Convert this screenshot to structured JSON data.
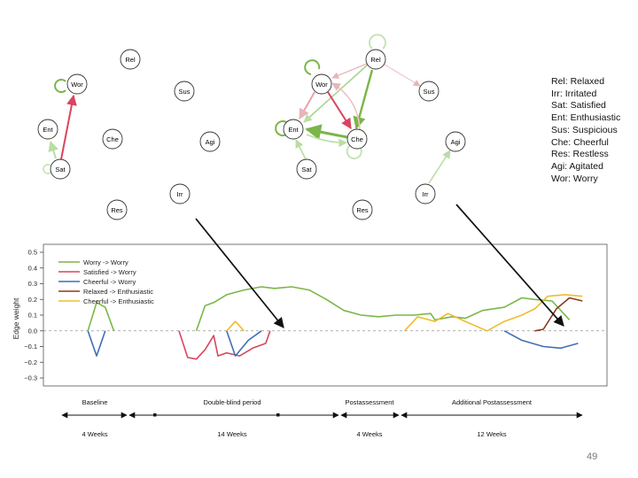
{
  "networks": {
    "node_labels": [
      "Rel",
      "Wor",
      "Sus",
      "Ent",
      "Che",
      "Agi",
      "Sat",
      "Irr",
      "Res"
    ]
  },
  "abbreviation_key": [
    "Rel: Relaxed",
    "Irr: Irritated",
    "Sat: Satisfied",
    "Ent: Enthusiastic",
    "Sus: Suspicious",
    "Che: Cheerful",
    "Res: Restless",
    "Agi: Agitated",
    "Wor: Worry"
  ],
  "colors": {
    "green": "#7ab648",
    "red": "#d9455f",
    "blue": "#3f6fb5",
    "brown": "#8b3a1e",
    "yellow": "#f0bb2e",
    "axis": "#444444",
    "arrow": "#111111"
  },
  "chart_data": {
    "type": "line",
    "xlabel": "",
    "ylabel": "Edge weight",
    "ylim": [
      -0.3,
      0.5
    ],
    "yticks": [
      "0.5",
      "0.4",
      "0.3",
      "0.2",
      "0.1",
      "0.0",
      "−0.1",
      "−0.2",
      "−0.3"
    ],
    "zero_line": "dashed",
    "legend_position": "top-left",
    "series": [
      {
        "name": "Worry -> Worry",
        "color": "#7ab648",
        "segments": [
          [
            [
              8,
              0.0
            ],
            [
              10,
              0.18
            ],
            [
              12,
              0.15
            ],
            [
              14,
              0.0
            ]
          ],
          [
            [
              33,
              0.0
            ],
            [
              35,
              0.16
            ],
            [
              37,
              0.18
            ],
            [
              40,
              0.23
            ],
            [
              44,
              0.26
            ],
            [
              48,
              0.28
            ],
            [
              51,
              0.27
            ],
            [
              55,
              0.28
            ],
            [
              59,
              0.26
            ],
            [
              63,
              0.2
            ],
            [
              67,
              0.13
            ],
            [
              71,
              0.1
            ],
            [
              75,
              0.09
            ],
            [
              79,
              0.1
            ],
            [
              83,
              0.1
            ],
            [
              87,
              0.11
            ],
            [
              88,
              0.07
            ],
            [
              92,
              0.09
            ],
            [
              95,
              0.08
            ],
            [
              99,
              0.13
            ],
            [
              104,
              0.15
            ],
            [
              108,
              0.21
            ],
            [
              111,
              0.2
            ],
            [
              115,
              0.19
            ],
            [
              119,
              0.07
            ]
          ]
        ]
      },
      {
        "name": "Satisfied -> Worry",
        "color": "#d9455f",
        "segments": [
          [
            [
              29,
              0.0
            ],
            [
              31,
              -0.17
            ],
            [
              33,
              -0.18
            ],
            [
              35,
              -0.12
            ],
            [
              37,
              -0.03
            ],
            [
              38,
              -0.16
            ],
            [
              40,
              -0.14
            ],
            [
              43,
              -0.16
            ],
            [
              46,
              -0.11
            ],
            [
              49,
              -0.08
            ],
            [
              50,
              0.0
            ]
          ]
        ]
      },
      {
        "name": "Cheerful -> Worry",
        "color": "#3f6fb5",
        "segments": [
          [
            [
              8,
              0.0
            ],
            [
              10,
              -0.16
            ],
            [
              12,
              0.0
            ]
          ],
          [
            [
              40,
              0.0
            ],
            [
              42,
              -0.16
            ],
            [
              45,
              -0.06
            ],
            [
              48,
              0.0
            ]
          ],
          [
            [
              104,
              0.0
            ],
            [
              108,
              -0.06
            ],
            [
              113,
              -0.1
            ],
            [
              117,
              -0.11
            ],
            [
              121,
              -0.08
            ]
          ]
        ]
      },
      {
        "name": "Relaxed -> Enthusiastic",
        "color": "#8b3a1e",
        "segments": [
          [
            [
              111,
              0.0
            ],
            [
              113,
              0.01
            ],
            [
              116,
              0.14
            ],
            [
              119,
              0.21
            ],
            [
              122,
              0.19
            ]
          ]
        ]
      },
      {
        "name": "Cheerful -> Enthusiastic",
        "color": "#f0bb2e",
        "segments": [
          [
            [
              40,
              0.0
            ],
            [
              42,
              0.06
            ],
            [
              44,
              0.0
            ]
          ],
          [
            [
              81,
              0.0
            ],
            [
              84,
              0.09
            ],
            [
              88,
              0.06
            ],
            [
              91,
              0.11
            ],
            [
              95,
              0.06
            ],
            [
              100,
              0.0
            ],
            [
              104,
              0.06
            ],
            [
              108,
              0.1
            ],
            [
              111,
              0.14
            ],
            [
              114,
              0.22
            ],
            [
              118,
              0.23
            ],
            [
              122,
              0.22
            ]
          ]
        ]
      }
    ],
    "phases": [
      {
        "label": "Baseline",
        "duration": "4 Weeks"
      },
      {
        "label": "Double-blind period",
        "duration": "14 Weeks"
      },
      {
        "label": "Postassessment",
        "duration": "4 Weeks"
      },
      {
        "label": "Additional Postassessment",
        "duration": "12 Weeks"
      }
    ]
  },
  "page_number": "49"
}
